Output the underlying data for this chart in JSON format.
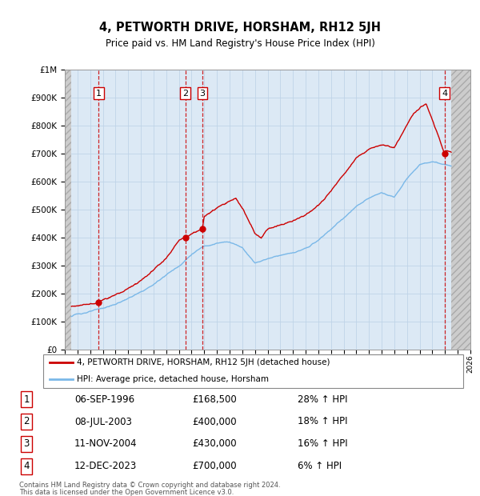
{
  "title": "4, PETWORTH DRIVE, HORSHAM, RH12 5JH",
  "subtitle": "Price paid vs. HM Land Registry's House Price Index (HPI)",
  "legend_line1": "4, PETWORTH DRIVE, HORSHAM, RH12 5JH (detached house)",
  "legend_line2": "HPI: Average price, detached house, Horsham",
  "footer1": "Contains HM Land Registry data © Crown copyright and database right 2024.",
  "footer2": "This data is licensed under the Open Government Licence v3.0.",
  "transactions": [
    {
      "num": 1,
      "date": "06-SEP-1996",
      "price": 168500,
      "hpi_pct": "28% ↑ HPI",
      "x": 1996.68
    },
    {
      "num": 2,
      "date": "08-JUL-2003",
      "price": 400000,
      "hpi_pct": "18% ↑ HPI",
      "x": 2003.52
    },
    {
      "num": 3,
      "date": "11-NOV-2004",
      "price": 430000,
      "hpi_pct": "16% ↑ HPI",
      "x": 2004.86
    },
    {
      "num": 4,
      "date": "12-DEC-2023",
      "price": 700000,
      "hpi_pct": "6% ↑ HPI",
      "x": 2023.95
    }
  ],
  "hpi_color": "#7ab8e8",
  "price_color": "#cc0000",
  "dashed_color": "#cc0000",
  "grid_color": "#c0d4e8",
  "bg_color": "#dce9f5",
  "xmin": 1994.0,
  "xmax": 2026.0,
  "ymin": 0,
  "ymax": 1000000,
  "yticks": [
    0,
    100000,
    200000,
    300000,
    400000,
    500000,
    600000,
    700000,
    800000,
    900000,
    1000000
  ],
  "ytick_labels": [
    "£0",
    "£100K",
    "£200K",
    "£300K",
    "£400K",
    "£500K",
    "£600K",
    "£700K",
    "£800K",
    "£900K",
    "£1M"
  ],
  "hpi_knots_x": [
    1994.0,
    1994.5,
    1995,
    1996,
    1997,
    1998,
    1999,
    2000,
    2001,
    2002,
    2003,
    2004,
    2005,
    2006,
    2007,
    2008,
    2009,
    2010,
    2011,
    2012,
    2013,
    2014,
    2015,
    2016,
    2017,
    2018,
    2019,
    2020,
    2021,
    2022,
    2023,
    2023.95,
    2024.5,
    2026.0
  ],
  "hpi_knots_y": [
    118000,
    120000,
    127000,
    136000,
    148000,
    162000,
    183000,
    205000,
    232000,
    268000,
    298000,
    340000,
    370000,
    380000,
    385000,
    365000,
    310000,
    325000,
    338000,
    345000,
    360000,
    390000,
    430000,
    470000,
    510000,
    540000,
    560000,
    545000,
    610000,
    660000,
    670000,
    660000,
    655000,
    655000
  ],
  "price_knots_x": [
    1994.0,
    1994.5,
    1995,
    1996,
    1996.68,
    1997,
    1998,
    1999,
    2000,
    2001,
    2002,
    2003,
    2003.52,
    2004,
    2004.86,
    2005,
    2006,
    2007,
    2007.5,
    2008,
    2009,
    2009.5,
    2010,
    2011,
    2012,
    2013,
    2014,
    2015,
    2016,
    2017,
    2018,
    2019,
    2020,
    2021,
    2021.5,
    2022,
    2022.5,
    2023,
    2023.5,
    2023.95,
    2024,
    2024.5,
    2026.0
  ],
  "price_knots_y": [
    150000,
    153000,
    158000,
    163000,
    168500,
    178000,
    195000,
    218000,
    248000,
    285000,
    328000,
    390000,
    400000,
    415000,
    430000,
    475000,
    505000,
    530000,
    540000,
    505000,
    415000,
    400000,
    430000,
    445000,
    460000,
    480000,
    515000,
    565000,
    625000,
    685000,
    715000,
    730000,
    720000,
    800000,
    840000,
    860000,
    880000,
    820000,
    760000,
    700000,
    710000,
    705000,
    705000
  ]
}
